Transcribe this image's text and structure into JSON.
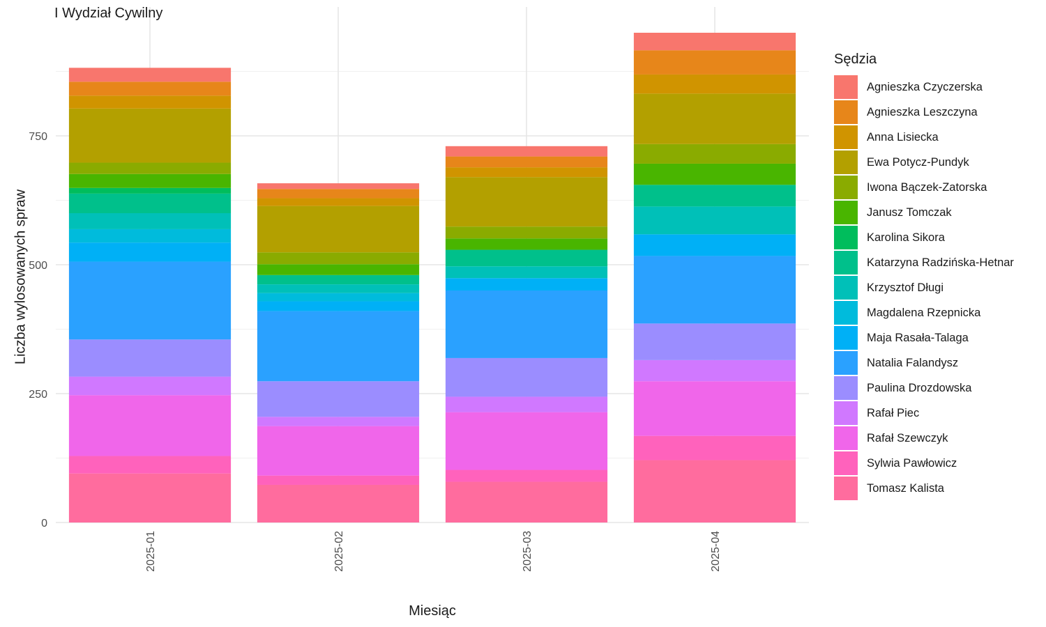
{
  "chart_data": {
    "type": "bar",
    "stacked": true,
    "title": "I Wydział Cywilny",
    "xlabel": "Miesiąc",
    "ylabel": "Liczba wylosowanych spraw",
    "ylim": [
      0,
      1000
    ],
    "yticks": [
      0,
      250,
      500,
      750
    ],
    "grid": true,
    "legend_title": "Sędzia",
    "legend_position": "right",
    "categories": [
      "2025-01",
      "2025-02",
      "2025-03",
      "2025-04"
    ],
    "series": [
      {
        "name": "Tomasz Kalista",
        "color": "#FF6C9E",
        "values": [
          95,
          73,
          79,
          121
        ]
      },
      {
        "name": "Sylwia Pawłowicz",
        "color": "#FF62BC",
        "values": [
          34,
          18,
          23,
          47
        ]
      },
      {
        "name": "Rafał Szewczyk",
        "color": "#F066EA",
        "values": [
          118,
          96,
          112,
          106
        ]
      },
      {
        "name": "Rafał Piec",
        "color": "#D078FF",
        "values": [
          36,
          18,
          30,
          41
        ]
      },
      {
        "name": "Paulina Drozdowska",
        "color": "#9B8DFF",
        "values": [
          72,
          69,
          75,
          71
        ]
      },
      {
        "name": "Natalia Falandysz",
        "color": "#2AA1FF",
        "values": [
          151,
          136,
          131,
          131
        ]
      },
      {
        "name": "Maja Rasała-Talaga",
        "color": "#00B0F6",
        "values": [
          37,
          19,
          24,
          42
        ]
      },
      {
        "name": "Magdalena Rzepnicka",
        "color": "#00BBDC",
        "values": [
          26,
          16,
          0,
          0
        ]
      },
      {
        "name": "Krzysztof Długi",
        "color": "#00C0B8",
        "values": [
          31,
          17,
          23,
          54
        ]
      },
      {
        "name": "Katarzyna Radzińska-Hetnar",
        "color": "#00C08B",
        "values": [
          38,
          18,
          32,
          42
        ]
      },
      {
        "name": "Karolina Sikora",
        "color": "#00BD5C",
        "values": [
          11,
          0,
          0,
          0
        ]
      },
      {
        "name": "Janusz Tomczak",
        "color": "#49B500",
        "values": [
          27,
          21,
          22,
          41
        ]
      },
      {
        "name": "Iwona Bączek-Zatorska",
        "color": "#8AAB00",
        "values": [
          22,
          23,
          23,
          38
        ]
      },
      {
        "name": "Ewa Potycz-Pundyk",
        "color": "#B3A000",
        "values": [
          105,
          90,
          96,
          98
        ]
      },
      {
        "name": "Anna Lisiecka",
        "color": "#D09400",
        "values": [
          25,
          15,
          19,
          37
        ]
      },
      {
        "name": "Agnieszka Leszczyna",
        "color": "#E7861A",
        "values": [
          27,
          18,
          21,
          47
        ]
      },
      {
        "name": "Agnieszka Czyczerska",
        "color": "#F8766D",
        "values": [
          27,
          11,
          20,
          34
        ]
      }
    ]
  }
}
